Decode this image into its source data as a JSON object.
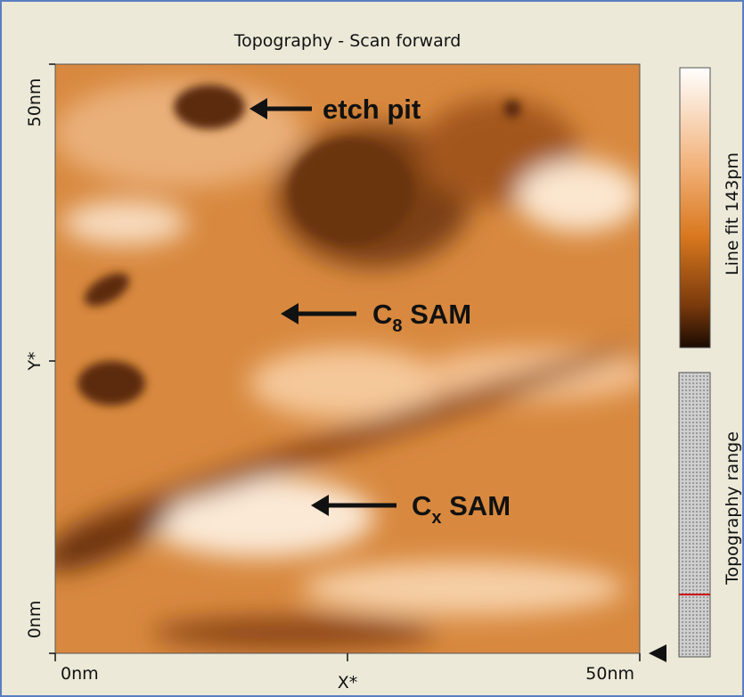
{
  "window": {
    "title": "Topography - Scan forward"
  },
  "y_axis": {
    "top": "50nm",
    "label": "Y*",
    "bottom": "0nm"
  },
  "x_axis": {
    "left": "0nm",
    "label": "X*",
    "right": "50nm"
  },
  "colorbar": {
    "label": "Line fit 143pm"
  },
  "range_bar": {
    "label": "Topography range"
  },
  "annotations": [
    {
      "text": "etch pit"
    },
    {
      "base": "C",
      "sub": "8",
      "rest": " SAM"
    },
    {
      "base": "C",
      "sub": "x",
      "rest": " SAM"
    }
  ]
}
